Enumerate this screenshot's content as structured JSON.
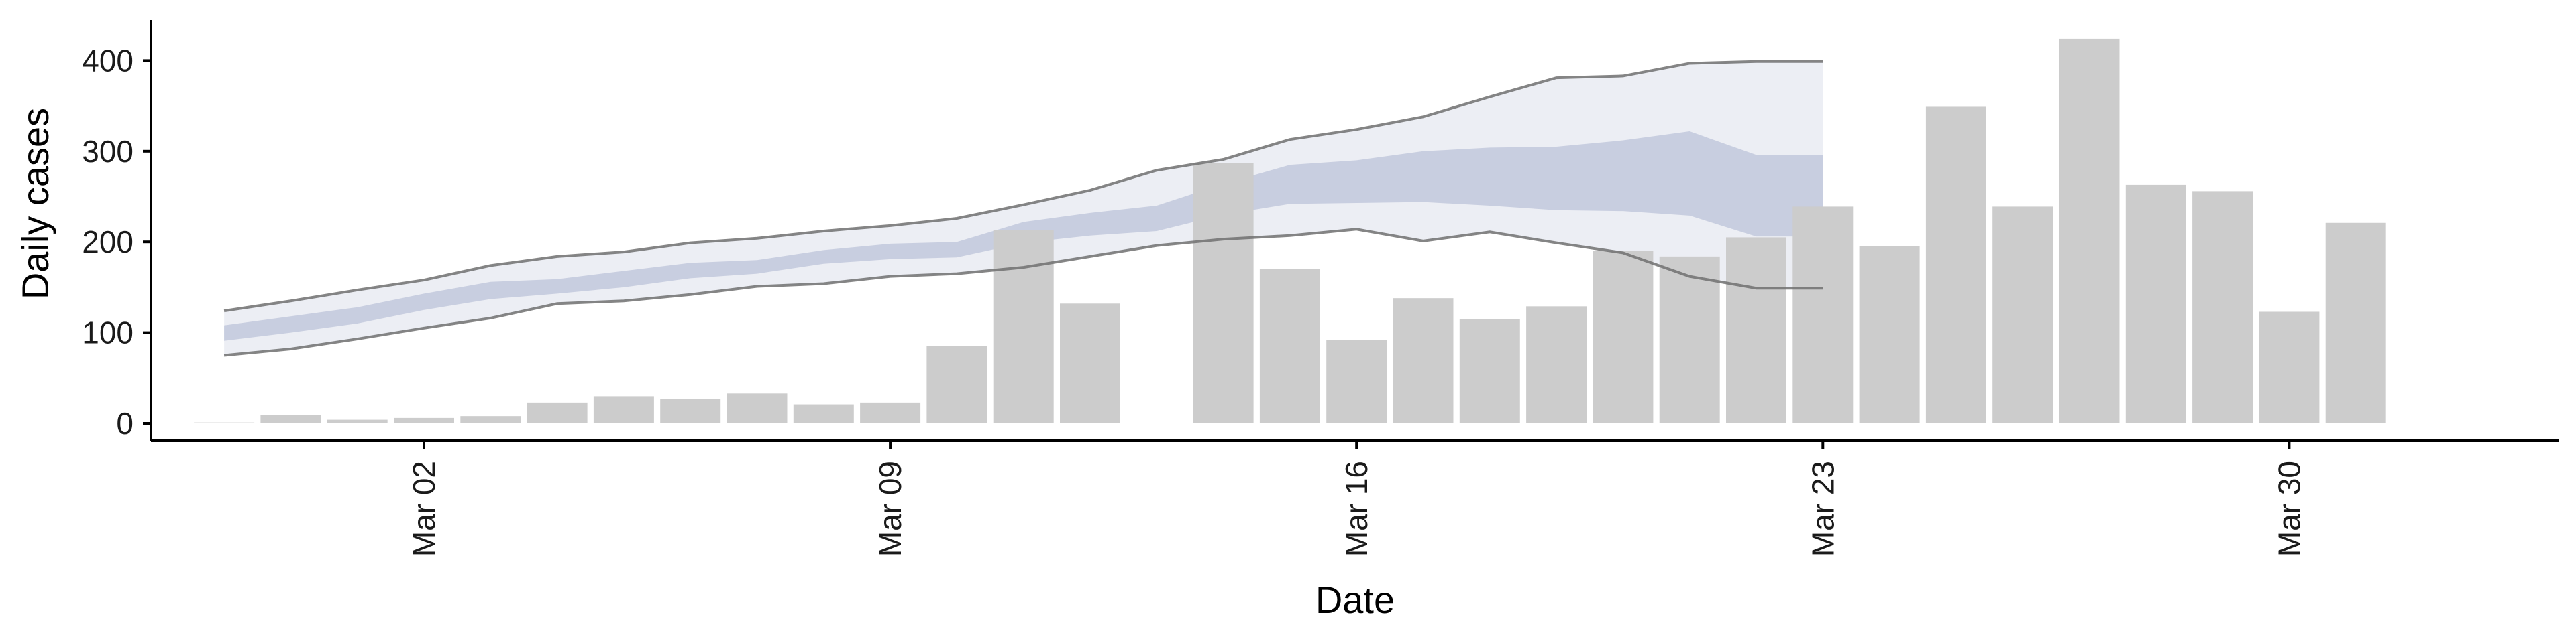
{
  "chart_data": {
    "type": "bar",
    "title": "",
    "xlabel": "Date",
    "ylabel": "Daily cases",
    "ylim": [
      -20,
      445
    ],
    "y_ticks": [
      0,
      100,
      200,
      300,
      400
    ],
    "x_ticks": [
      {
        "date": "2020-03-02",
        "label": "Mar 02"
      },
      {
        "date": "2020-03-09",
        "label": "Mar 09"
      },
      {
        "date": "2020-03-16",
        "label": "Mar 16"
      },
      {
        "date": "2020-03-23",
        "label": "Mar 23"
      },
      {
        "date": "2020-03-30",
        "label": "Mar 30"
      }
    ],
    "grid": false,
    "legend": "none",
    "colors": {
      "bars": "#cccccc",
      "band_outer": "#dadeea",
      "band_inner": "#c2c8dc",
      "outer_lines": "#707070",
      "axis": "#000000"
    },
    "series": [
      {
        "kind": "bar",
        "x": [
          "2020-02-28",
          "2020-02-29",
          "2020-03-01",
          "2020-03-02",
          "2020-03-03",
          "2020-03-04",
          "2020-03-05",
          "2020-03-06",
          "2020-03-07",
          "2020-03-08",
          "2020-03-09",
          "2020-03-10",
          "2020-03-11",
          "2020-03-12",
          "2020-03-13",
          "2020-03-14",
          "2020-03-15",
          "2020-03-16",
          "2020-03-17",
          "2020-03-18",
          "2020-03-19",
          "2020-03-20",
          "2020-03-21",
          "2020-03-22",
          "2020-03-23",
          "2020-03-24",
          "2020-03-25",
          "2020-03-26",
          "2020-03-27",
          "2020-03-28",
          "2020-03-29",
          "2020-03-30",
          "2020-03-31",
          "2020-04-01"
        ],
        "values": [
          1,
          9,
          4,
          6,
          8,
          23,
          30,
          27,
          33,
          21,
          23,
          85,
          213,
          132,
          0,
          287,
          170,
          92,
          138,
          115,
          129,
          190,
          184,
          205,
          239,
          195,
          349,
          239,
          424,
          263,
          256,
          123,
          221,
          0
        ]
      },
      {
        "kind": "band",
        "x": [
          "2020-02-28",
          "2020-02-29",
          "2020-03-01",
          "2020-03-02",
          "2020-03-03",
          "2020-03-04",
          "2020-03-05",
          "2020-03-06",
          "2020-03-07",
          "2020-03-08",
          "2020-03-09",
          "2020-03-10",
          "2020-03-11",
          "2020-03-12",
          "2020-03-13",
          "2020-03-14",
          "2020-03-15",
          "2020-03-16",
          "2020-03-17",
          "2020-03-18",
          "2020-03-19",
          "2020-03-20",
          "2020-03-21",
          "2020-03-22",
          "2020-03-23"
        ],
        "outer_low": [
          75,
          82,
          93,
          105,
          116,
          132,
          135,
          142,
          151,
          154,
          162,
          165,
          172,
          184,
          196,
          203,
          207,
          214,
          201,
          211,
          199,
          188,
          162,
          149,
          149
        ],
        "outer_high": [
          124,
          135,
          147,
          158,
          174,
          184,
          189,
          199,
          204,
          212,
          218,
          226,
          241,
          257,
          279,
          291,
          313,
          324,
          338,
          360,
          381,
          383,
          397,
          399,
          399
        ],
        "inner_low": [
          91,
          100,
          110,
          125,
          137,
          143,
          150,
          160,
          165,
          176,
          181,
          183,
          199,
          207,
          212,
          230,
          242,
          243,
          244,
          240,
          235,
          234,
          229,
          206,
          206
        ],
        "inner_high": [
          108,
          118,
          128,
          143,
          156,
          159,
          168,
          177,
          180,
          191,
          198,
          200,
          222,
          232,
          240,
          264,
          285,
          290,
          300,
          304,
          305,
          312,
          322,
          296,
          296
        ]
      }
    ]
  }
}
